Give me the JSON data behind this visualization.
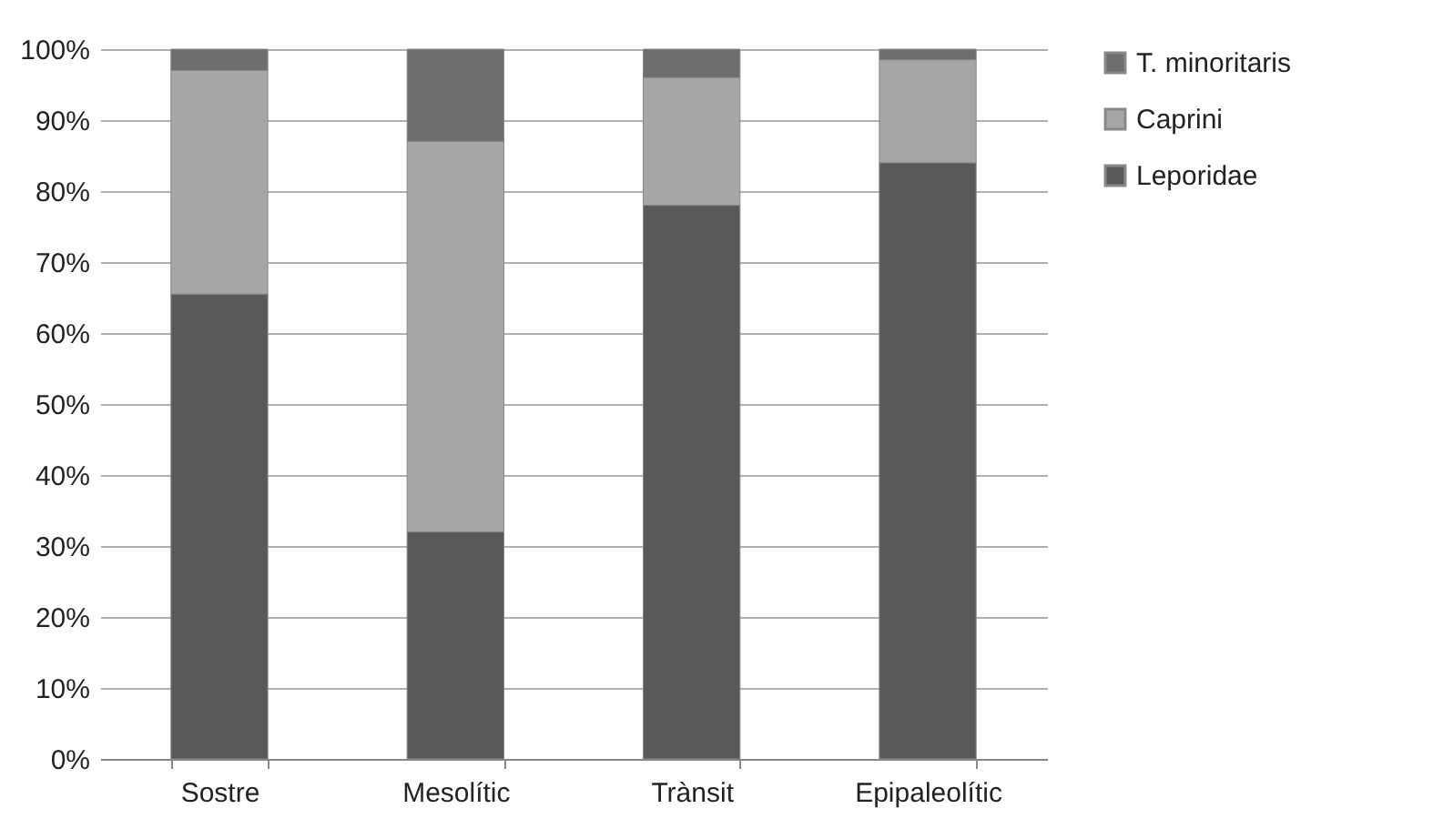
{
  "chart_data": {
    "type": "bar",
    "stacked": true,
    "categories": [
      "Sostre",
      "Mesolític",
      "Trànsit",
      "Epipaleolític"
    ],
    "series": [
      {
        "name": "Leporidae",
        "color": "#595959",
        "values": [
          65.5,
          32,
          78,
          84
        ]
      },
      {
        "name": "Caprini",
        "color": "#a6a6a6",
        "values": [
          31.5,
          55,
          18,
          14.5
        ]
      },
      {
        "name": "T. minoritaris",
        "color": "#6e6e6e",
        "values": [
          3,
          13,
          4,
          1.5
        ]
      }
    ],
    "ylim": [
      0,
      100
    ],
    "yticks": [
      {
        "value": 0,
        "label": "0%"
      },
      {
        "value": 10,
        "label": "10%"
      },
      {
        "value": 20,
        "label": "20%"
      },
      {
        "value": 30,
        "label": "30%"
      },
      {
        "value": 40,
        "label": "40%"
      },
      {
        "value": 50,
        "label": "50%"
      },
      {
        "value": 60,
        "label": "60%"
      },
      {
        "value": 70,
        "label": "70%"
      },
      {
        "value": 80,
        "label": "80%"
      },
      {
        "value": 90,
        "label": "90%"
      },
      {
        "value": 100,
        "label": "100%"
      }
    ],
    "grid": "y",
    "legend": "right"
  }
}
